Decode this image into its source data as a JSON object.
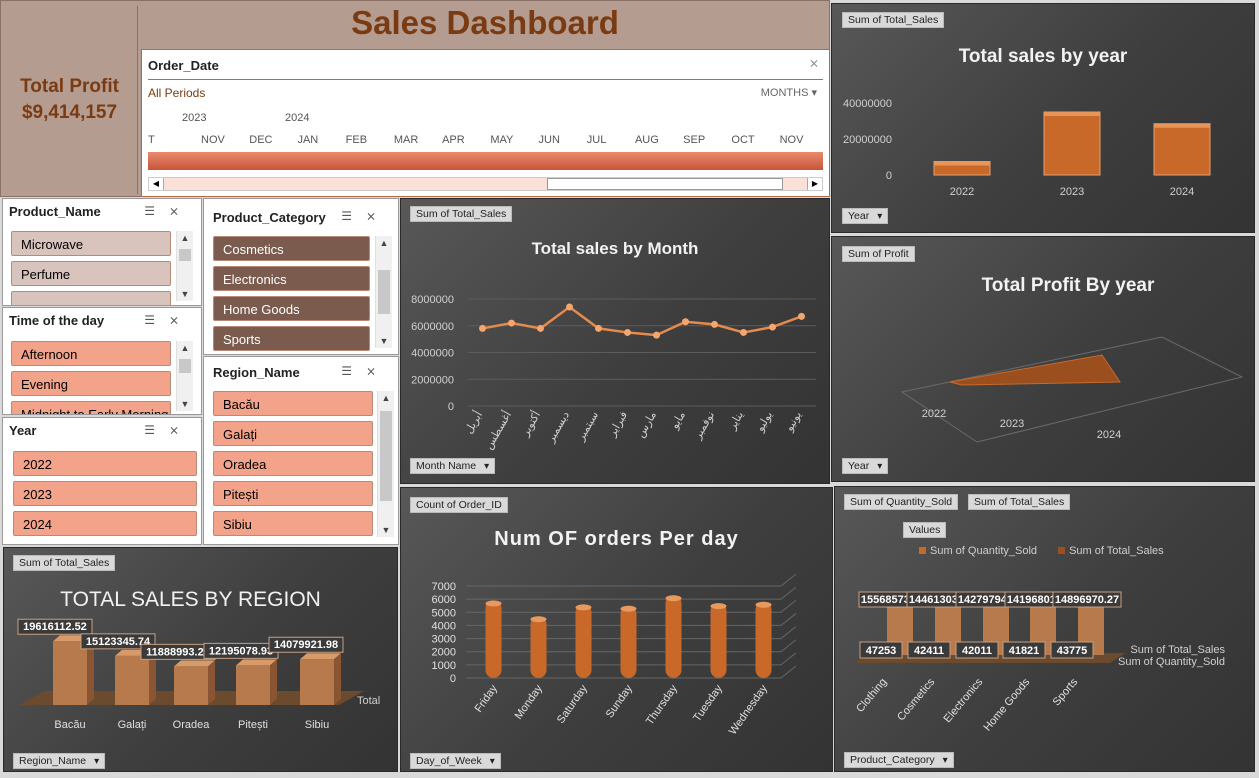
{
  "header": {
    "title": "Sales Dashboard"
  },
  "kpi": {
    "label": "Total Profit",
    "value": "$9,414,157"
  },
  "timeline": {
    "field": "Order_Date",
    "period_label": "All Periods",
    "level": "MONTHS",
    "years": [
      "2023",
      "2024"
    ],
    "months": [
      "T",
      "NOV",
      "DEC",
      "JAN",
      "FEB",
      "MAR",
      "APR",
      "MAY",
      "JUN",
      "JUL",
      "AUG",
      "SEP",
      "OCT",
      "NOV"
    ]
  },
  "slicers": {
    "product_name": {
      "title": "Product_Name",
      "items": [
        "Microwave",
        "Perfume"
      ]
    },
    "time_of_day": {
      "title": "Time of the day",
      "items": [
        "Afternoon",
        "Evening",
        "Midnight to Early Morning"
      ]
    },
    "year": {
      "title": "Year",
      "items": [
        "2022",
        "2023",
        "2024"
      ]
    },
    "product_category": {
      "title": "Product_Category",
      "items": [
        "Cosmetics",
        "Electronics",
        "Home Goods",
        "Sports"
      ]
    },
    "region_name": {
      "title": "Region_Name",
      "items": [
        "Bacău",
        "Galați",
        "Oradea",
        "Pitești",
        "Sibiu"
      ]
    }
  },
  "colors": {
    "brown_dark": "#7a3b12",
    "slicer_brown": "#7a5b4e",
    "slicer_salmon": "#f2a389",
    "slicer_pale": "#d9c3bd",
    "bar": "#c8692a",
    "header_bg": "#b59c90"
  },
  "chart_data": [
    {
      "id": "sales_by_year",
      "type": "bar",
      "title": "Total sales by year",
      "field_button": "Sum of Total_Sales",
      "axis_button": "Year",
      "categories": [
        "2022",
        "2023",
        "2024"
      ],
      "values": [
        7500000,
        35000000,
        28500000
      ],
      "yticks": [
        "0",
        "20000000",
        "40000000"
      ],
      "ylim": [
        0,
        45000000
      ]
    },
    {
      "id": "sales_by_month",
      "type": "line",
      "title": "Total sales by Month",
      "field_button": "Sum of Total_Sales",
      "axis_button": "Month Name",
      "categories": [
        "أبريل",
        "أغسطس",
        "أكتوبر",
        "ديسمبر",
        "سبتمبر",
        "فبراير",
        "مارس",
        "مايو",
        "نوفمبر",
        "يناير",
        "يوليو",
        "يونيو"
      ],
      "values": [
        5800000,
        6200000,
        5800000,
        7400000,
        5800000,
        5500000,
        5300000,
        6300000,
        6100000,
        5500000,
        5900000,
        6700000
      ],
      "yticks": [
        "0",
        "2000000",
        "4000000",
        "6000000",
        "8000000"
      ],
      "ylim": [
        0,
        8000000
      ]
    },
    {
      "id": "profit_by_year",
      "type": "area",
      "title": "Total Profit By year",
      "field_button": "Sum of Profit",
      "axis_button": "Year",
      "categories": [
        "2022",
        "2023",
        "2024"
      ]
    },
    {
      "id": "sales_by_region",
      "type": "bar",
      "title": "TOTAL SALES BY REGION",
      "field_button": "Sum of Total_Sales",
      "axis_button": "Region_Name",
      "series_label": "Total",
      "categories": [
        "Bacău",
        "Galați",
        "Oradea",
        "Pitești",
        "Sibiu"
      ],
      "values": [
        19616112.52,
        15123345.74,
        11888993.21,
        12195078.93,
        14079921.98
      ],
      "labels": [
        "19616112.52",
        "15123345.74",
        "11888993.21",
        "12195078.93",
        "14079921.98"
      ]
    },
    {
      "id": "orders_per_day",
      "type": "bar",
      "title": "Num OF orders Per day",
      "field_button": "Count of Order_ID",
      "axis_button": "Day_of_Week",
      "categories": [
        "Friday",
        "Monday",
        "Saturday",
        "Sunday",
        "Thursday",
        "Tuesday",
        "Wednesday"
      ],
      "values": [
        5900,
        4700,
        5600,
        5500,
        6300,
        5700,
        5800
      ],
      "yticks": [
        "0",
        "1000",
        "2000",
        "3000",
        "4000",
        "5000",
        "6000",
        "7000"
      ],
      "ylim": [
        0,
        7000
      ]
    },
    {
      "id": "category_qty_sales",
      "type": "bar",
      "title": "",
      "field_buttons": [
        "Sum of Quantity_Sold",
        "Sum of Total_Sales"
      ],
      "values_button": "Values",
      "axis_button": "Product_Category",
      "categories": [
        "Clothing",
        "Cosmetics",
        "Electronics",
        "Home Goods",
        "Sports"
      ],
      "series": [
        {
          "name": "Sum of Quantity_Sold",
          "values": [
            47253,
            42411,
            42011,
            41821,
            43775
          ],
          "labels": [
            "47253",
            "42411",
            "42011",
            "41821",
            "43775"
          ]
        },
        {
          "name": "Sum of Total_Sales",
          "values": [
            15568573.24,
            14461303.58,
            14279794.91,
            14196801.81,
            14896970.27
          ],
          "labels": [
            "15568573.24",
            "14461303.58",
            "14279794.91",
            "14196801.81",
            "14896970.27"
          ]
        }
      ],
      "depth_labels": [
        "Sum of Total_Sales",
        "Sum of Quantity_Sold"
      ]
    }
  ]
}
